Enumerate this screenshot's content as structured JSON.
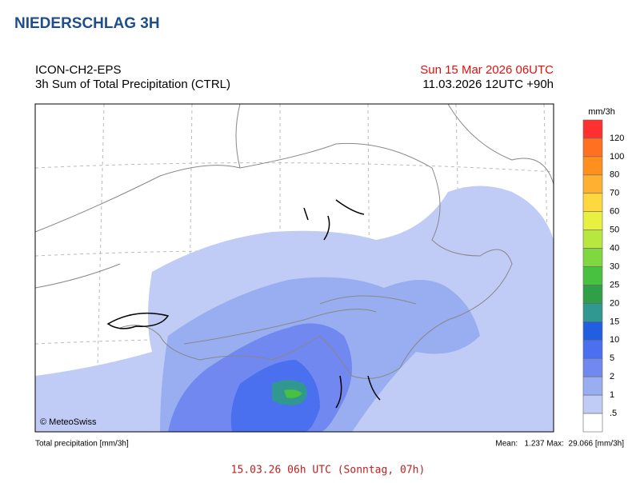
{
  "header": {
    "title": "NIEDERSCHLAG 3H"
  },
  "map": {
    "model": "ICON-CH2-EPS",
    "product": "3h Sum of Total Precipitation (CTRL)",
    "valid_time": "Sun 15 Mar 2026 06UTC",
    "run": "11.03.2026 12UTC +90h",
    "copyright": "© MeteoSwiss"
  },
  "legend": {
    "unit": "mm/3h",
    "labels": [
      "120",
      "100",
      "80",
      "70",
      "60",
      "50",
      "40",
      "30",
      "25",
      "20",
      "15",
      "10",
      "5",
      "2",
      "1",
      ".5"
    ],
    "colors": [
      "#ff3030",
      "#ff7020",
      "#ff9020",
      "#ffb030",
      "#ffd840",
      "#e8f040",
      "#b8e840",
      "#80d840",
      "#48c040",
      "#30a048",
      "#309890",
      "#2060e0",
      "#4a70f0",
      "#7088f0",
      "#98aef0",
      "#c0ccf6",
      "#ffffff"
    ]
  },
  "footer": {
    "left": "Total precipitation [mm/3h]",
    "right": "Mean:   1.237 Max:  29.066 [mm/3h]"
  },
  "caption": "15.03.26 06h UTC (Sonntag, 07h)"
}
